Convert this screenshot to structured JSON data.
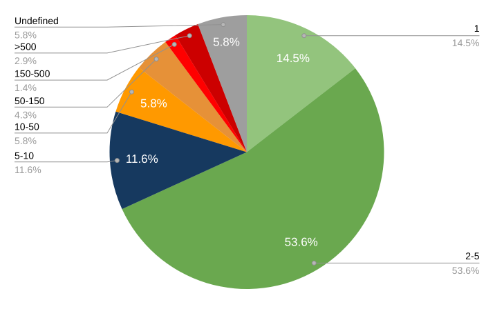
{
  "chart_data": {
    "type": "pie",
    "title": "",
    "legend_position": "labeled-callouts",
    "start_angle_deg": 0,
    "direction": "clockwise",
    "background_color": "#ffffff",
    "leader_line_color": "#919191",
    "callout_label_color": "#000000",
    "callout_pct_color": "#9a9a9a",
    "inside_label_color": "#ffffff",
    "slices": [
      {
        "label": "1",
        "value": 14.5,
        "pct_label": "14.5%",
        "color": "#93c47d",
        "callout_side": "right",
        "inside_pct_shown": true
      },
      {
        "label": "2-5",
        "value": 53.6,
        "pct_label": "53.6%",
        "color": "#6aa84f",
        "callout_side": "right",
        "inside_pct_shown": true
      },
      {
        "label": "5-10",
        "value": 11.6,
        "pct_label": "11.6%",
        "color": "#16395f",
        "callout_side": "left",
        "inside_pct_shown": true
      },
      {
        "label": "10-50",
        "value": 5.8,
        "pct_label": "5.8%",
        "color": "#ff9900",
        "callout_side": "left",
        "inside_pct_shown": true
      },
      {
        "label": "50-150",
        "value": 4.3,
        "pct_label": "4.3%",
        "color": "#e69138",
        "callout_side": "left",
        "inside_pct_shown": false
      },
      {
        "label": "150-500",
        "value": 1.4,
        "pct_label": "1.4%",
        "color": "#ff0000",
        "callout_side": "left",
        "inside_pct_shown": false
      },
      {
        "label": ">500",
        "value": 2.9,
        "pct_label": "2.9%",
        "color": "#cc0000",
        "callout_side": "left",
        "inside_pct_shown": false
      },
      {
        "label": "Undefined",
        "value": 5.8,
        "pct_label": "5.8%",
        "color": "#9e9e9e",
        "callout_side": "left",
        "inside_pct_shown": true
      }
    ]
  }
}
